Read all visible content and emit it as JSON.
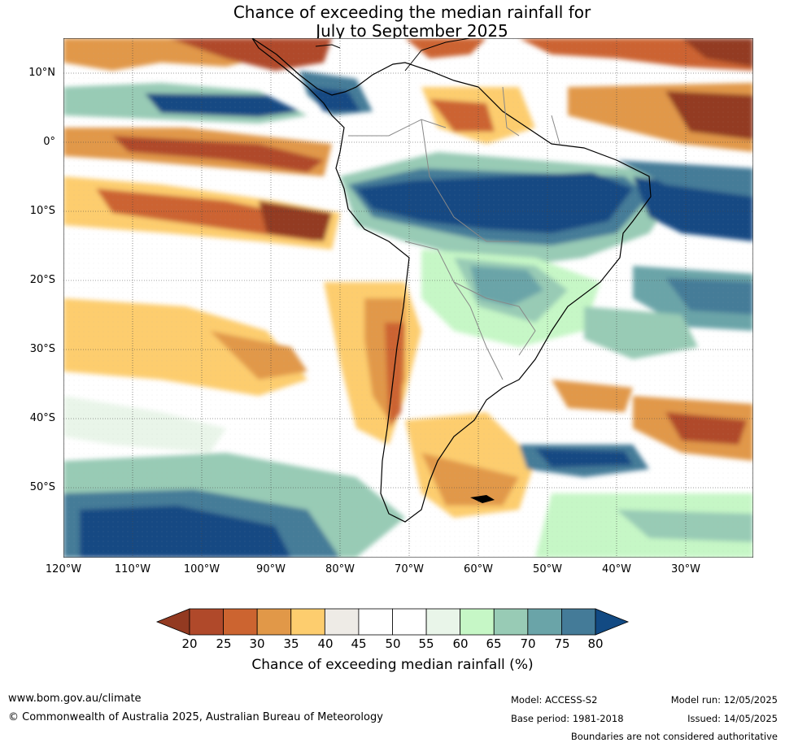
{
  "title": {
    "line1": "Chance of exceeding the median rainfall for",
    "line2": "July to September 2025"
  },
  "map": {
    "lat_labels": [
      "10°N",
      "0°",
      "10°S",
      "20°S",
      "30°S",
      "40°S",
      "50°S"
    ],
    "lon_labels": [
      "120°W",
      "110°W",
      "100°W",
      "90°W",
      "80°W",
      "70°W",
      "60°W",
      "50°W",
      "40°W",
      "30°W"
    ]
  },
  "colorbar": {
    "ticks": [
      "20",
      "25",
      "30",
      "35",
      "40",
      "45",
      "50",
      "55",
      "60",
      "65",
      "70",
      "75",
      "80"
    ],
    "colors": [
      "#933a21",
      "#b0492a",
      "#cc6430",
      "#e19848",
      "#fdcd6e",
      "#eeebe6",
      "#ffffff",
      "#ffffff",
      "#e9f5e9",
      "#c6f7c6",
      "#98cbb5",
      "#6aa4a8",
      "#447b98",
      "#124a83"
    ],
    "label": "Chance of exceeding median rainfall (%)"
  },
  "footer": {
    "website": "www.bom.gov.au/climate",
    "copyright": "© Commonwealth of Australia 2025, Australian Bureau of Meteorology",
    "model": "Model: ACCESS-S2",
    "base_period": "Base period: 1981-2018",
    "model_run": "Model run: 12/05/2025",
    "issued": "Issued: 14/05/2025",
    "disclaimer": "Boundaries are not considered authoritative"
  }
}
